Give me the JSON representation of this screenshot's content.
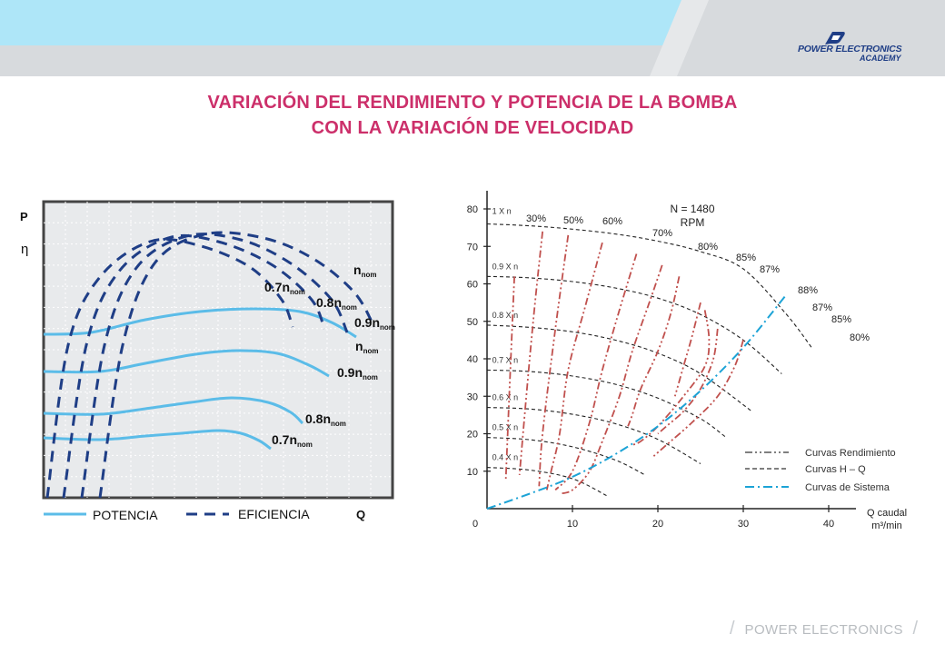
{
  "header": {
    "logo_line1": "POWER ELECTRONICS",
    "logo_line2": "ACADEMY",
    "colors": {
      "accent_light": "#aee6f8",
      "accent_band": "#d7dadd",
      "brand": "#1f3e86",
      "title": "#cc2f6a"
    }
  },
  "title": {
    "line1": "VARIACIÓN DEL RENDIMIENTO Y POTENCIA DE LA BOMBA",
    "line2": "CON LA VARIACIÓN DE VELOCIDAD"
  },
  "footer": {
    "text": "POWER ELECTRONICS"
  },
  "chart_data": [
    {
      "type": "line",
      "axis_labels": {
        "y1": "P",
        "y2": "η",
        "x": "Q"
      },
      "grid": true,
      "power_curves": {
        "color": "#5bbce8",
        "labels": [
          {
            "base": "n",
            "sub": "nom",
            "prefix": ""
          },
          {
            "base": "n",
            "sub": "nom",
            "prefix": "0.9"
          },
          {
            "base": "n",
            "sub": "nom",
            "prefix": "0.8"
          },
          {
            "base": "n",
            "sub": "nom",
            "prefix": "0.7"
          }
        ]
      },
      "efficiency_curves": {
        "color": "#1f3e86",
        "labels": [
          {
            "base": "n",
            "sub": "nom",
            "prefix": ""
          },
          {
            "base": "n",
            "sub": "nom",
            "prefix": "0.9"
          },
          {
            "base": "n",
            "sub": "nom",
            "prefix": "0.8"
          },
          {
            "base": "n",
            "sub": "nom",
            "prefix": "0.7"
          }
        ]
      },
      "legend": {
        "potencia": "POTENCIA",
        "eficiencia": "EFICIENCIA",
        "q": "Q"
      }
    },
    {
      "type": "line",
      "x_ticks": [
        "0",
        "10",
        "20",
        "30",
        "40"
      ],
      "y_ticks": [
        "10",
        "20",
        "30",
        "40",
        "50",
        "60",
        "70",
        "80"
      ],
      "xlim": [
        0,
        42
      ],
      "ylim": [
        0,
        85
      ],
      "xlabel_line1": "Q caudal",
      "xlabel_line2": "m³/min",
      "rpm_label_line1": "N = 1480",
      "rpm_label_line2": "RPM",
      "speed_curves": [
        {
          "name": "1 X n",
          "x": [
            0,
            5,
            10,
            15,
            20,
            25,
            30,
            35,
            38
          ],
          "y": [
            76,
            75.5,
            74.6,
            73.3,
            71.4,
            68.6,
            64,
            52,
            43
          ]
        },
        {
          "name": "0.9 X n",
          "x": [
            0,
            5,
            10,
            15,
            20,
            25,
            30,
            34.5
          ],
          "y": [
            62,
            61.6,
            60.6,
            58.9,
            56.2,
            51.8,
            45,
            36
          ]
        },
        {
          "name": "0.8 X n",
          "x": [
            0,
            5,
            10,
            15,
            20,
            25,
            31
          ],
          "y": [
            49,
            48.4,
            47.2,
            45,
            41.5,
            36,
            26
          ]
        },
        {
          "name": "0.7 X n",
          "x": [
            0,
            5,
            10,
            15,
            20,
            25,
            28
          ],
          "y": [
            37,
            36.6,
            35.4,
            33.2,
            29.5,
            24,
            19
          ]
        },
        {
          "name": "0.6 X n",
          "x": [
            0,
            5,
            10,
            15,
            20,
            25
          ],
          "y": [
            27,
            26.6,
            25.2,
            22.7,
            18.5,
            12
          ]
        },
        {
          "name": "0.5 X n",
          "x": [
            0,
            5,
            10,
            15,
            18.5
          ],
          "y": [
            19,
            18.4,
            16.5,
            13,
            9
          ]
        },
        {
          "name": "0.4 X n",
          "x": [
            0,
            5,
            10,
            14
          ],
          "y": [
            11,
            10.3,
            8,
            3.5
          ]
        }
      ],
      "efficiency_curves": [
        {
          "label": "30%",
          "x": [
            3.2,
            2.6,
            2.2
          ],
          "y": [
            62,
            30,
            8
          ]
        },
        {
          "label": "50%",
          "x": [
            6.5,
            5.4,
            4.4,
            3.8
          ],
          "y": [
            74,
            50,
            25,
            9
          ]
        },
        {
          "label": "60%",
          "x": [
            9.5,
            8,
            6.5,
            6.1
          ],
          "y": [
            73,
            48,
            20,
            6
          ]
        },
        {
          "label": "70%",
          "x": [
            13.5,
            11.5,
            9.5,
            8.5,
            7.5,
            7
          ],
          "y": [
            71,
            54,
            37,
            20,
            10,
            5
          ]
        },
        {
          "label": "80%",
          "x": [
            17.5,
            15.5,
            13.5,
            12,
            10,
            8
          ],
          "y": [
            68,
            53,
            37,
            23,
            10,
            5
          ]
        },
        {
          "label": "85%",
          "x": [
            20.5,
            19,
            17,
            15.5,
            13.5,
            12,
            10,
            8.5
          ],
          "y": [
            65,
            55,
            42,
            30,
            18,
            10,
            5,
            4
          ]
        },
        {
          "label": "87%",
          "x": [
            22.5,
            21.5,
            20,
            18,
            17,
            16.5
          ],
          "y": [
            62,
            52,
            42,
            32,
            25,
            22
          ]
        },
        {
          "label": "88%",
          "x": [
            25,
            24,
            23,
            22
          ],
          "y": [
            55,
            46,
            38,
            30
          ]
        },
        {
          "label": "87%",
          "x": [
            25.5,
            26,
            25.5,
            23,
            20,
            18,
            17
          ],
          "y": [
            53,
            45,
            38,
            30,
            22,
            18,
            17
          ]
        },
        {
          "label": "85%",
          "x": [
            27,
            26.5,
            25,
            23,
            21,
            20
          ],
          "y": [
            48,
            40,
            32,
            26,
            22,
            20
          ]
        },
        {
          "label": "80%",
          "x": [
            30,
            29,
            27,
            24,
            21,
            19.5
          ],
          "y": [
            45,
            38,
            30,
            23,
            17,
            14
          ]
        }
      ],
      "system_curve": {
        "x": [
          0,
          5,
          10,
          15,
          20,
          25,
          30,
          35
        ],
        "y": [
          0,
          4,
          8.5,
          14.5,
          22,
          31.5,
          43,
          57
        ]
      },
      "colors": {
        "speed": "#222222",
        "efficiency": "#c0504d",
        "system": "#1ca3d6"
      },
      "legend": [
        {
          "label": "Curvas Rendimiento",
          "style": "dash-dot-dot"
        },
        {
          "label": "Curvas H – Q",
          "style": "dash"
        },
        {
          "label": "Curvas de Sistema",
          "style": "dash-dot"
        }
      ]
    }
  ]
}
